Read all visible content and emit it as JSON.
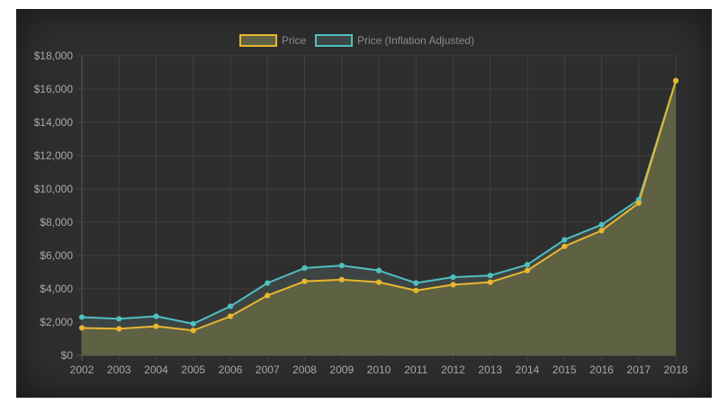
{
  "chart_data": {
    "type": "area",
    "categories": [
      "2002",
      "2003",
      "2004",
      "2005",
      "2006",
      "2007",
      "2008",
      "2009",
      "2010",
      "2011",
      "2012",
      "2013",
      "2014",
      "2015",
      "2016",
      "2017",
      "2018"
    ],
    "series": [
      {
        "name": "Price",
        "color": "#e8b72e",
        "fill": "#5f6143",
        "values": [
          1650,
          1600,
          1750,
          1500,
          2350,
          3600,
          4450,
          4550,
          4400,
          3900,
          4250,
          4400,
          5100,
          6550,
          7500,
          9150,
          16500
        ]
      },
      {
        "name": "Price (Inflation Adjusted)",
        "color": "#4fbfc0",
        "fill": "#3d4444",
        "values": [
          2300,
          2200,
          2350,
          1900,
          2950,
          4350,
          5250,
          5400,
          5100,
          4350,
          4700,
          4800,
          5450,
          6950,
          7850,
          9350,
          16500
        ]
      }
    ],
    "ylim": [
      0,
      18000
    ],
    "y_ticks": [
      0,
      2000,
      4000,
      6000,
      8000,
      10000,
      12000,
      14000,
      16000,
      18000
    ],
    "y_tick_labels": [
      "$0",
      "$2,000",
      "$4,000",
      "$6,000",
      "$8,000",
      "$10,000",
      "$12,000",
      "$14,000",
      "$16,000",
      "$18,000"
    ],
    "grid": true,
    "legend": "top-center"
  }
}
